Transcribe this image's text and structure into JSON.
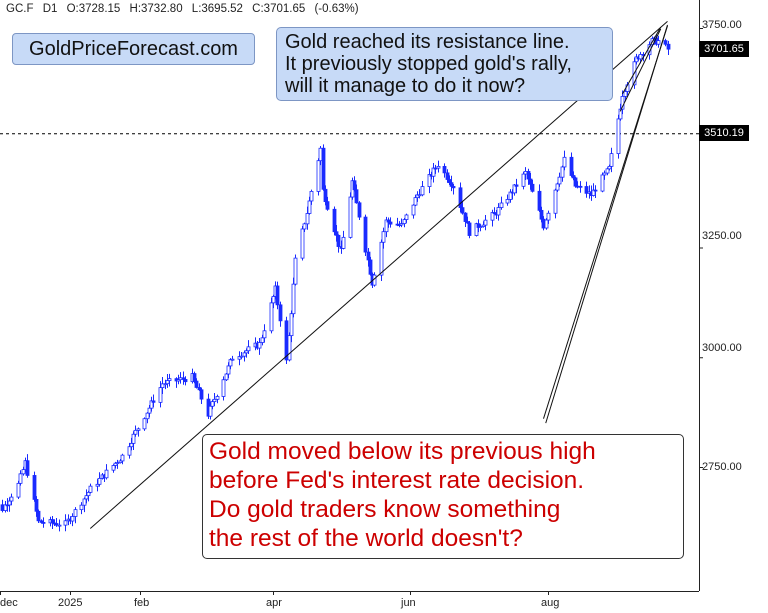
{
  "header": {
    "symbol": "GC.F",
    "interval": "D1",
    "open": "O:3728.15",
    "high": "H:3732.80",
    "low": "L:3695.52",
    "close": "C:3701.65",
    "change": "(-0.63%)"
  },
  "brand": "GoldPriceForecast.com",
  "annotations": {
    "top": [
      "Gold reached its resistance line.",
      "It previously stopped gold's rally,",
      "will it manage to do it now?"
    ],
    "bottom": [
      "Gold moved below its previous high",
      "before Fed's interest rate decision.",
      "Do gold traders know something",
      "the rest of the world doesn't?"
    ]
  },
  "price_tags": {
    "last": "3701.65",
    "previous_high": "3510.19"
  },
  "colors": {
    "candles": "#1a2bff",
    "callout_fill": "#c7daf7",
    "callout_text_bottom": "#cc0000",
    "background": "#ffffff"
  },
  "chart_data": {
    "type": "candlestick",
    "instrument": "GC.F",
    "timeframe": "D1",
    "x_tick_labels": [
      "dec",
      "2025",
      "feb",
      "apr",
      "jun",
      "aug"
    ],
    "y_tick_labels": [
      "3750.00",
      "3250.00",
      "3000.00",
      "2750.00"
    ],
    "ylim": [
      2570,
      3775
    ],
    "horizontal_levels": [
      3510.19
    ],
    "last_price": 3701.65,
    "trendlines": [
      {
        "from": [
          "2025-01-10",
          2610
        ],
        "to": [
          "2025-09-23",
          3765
        ]
      },
      {
        "from": [
          "2025-07-30",
          2860
        ],
        "to": [
          "2025-09-23",
          3755
        ]
      },
      {
        "from": [
          "2025-07-31",
          2850
        ],
        "to": [
          "2025-09-23",
          3757
        ]
      },
      {
        "from": [
          "2025-09-03",
          3600
        ],
        "to": [
          "2025-09-20",
          3752
        ]
      },
      {
        "from": [
          "2025-09-02",
          3560
        ],
        "to": [
          "2025-09-20",
          3748
        ]
      }
    ],
    "anchors": [
      [
        "2024-11-25",
        2670
      ],
      [
        "2024-12-02",
        2655
      ],
      [
        "2024-12-09",
        2710
      ],
      [
        "2024-12-12",
        2760
      ],
      [
        "2024-12-18",
        2625
      ],
      [
        "2024-12-30",
        2620
      ],
      [
        "2025-01-10",
        2700
      ],
      [
        "2025-01-24",
        2775
      ],
      [
        "2025-02-11",
        2940
      ],
      [
        "2025-02-24",
        2955
      ],
      [
        "2025-03-03",
        2870
      ],
      [
        "2025-03-14",
        3000
      ],
      [
        "2025-03-26",
        3030
      ],
      [
        "2025-04-02",
        3155
      ],
      [
        "2025-04-07",
        2990
      ],
      [
        "2025-04-11",
        3220
      ],
      [
        "2025-04-16",
        3330
      ],
      [
        "2025-04-22",
        3475
      ],
      [
        "2025-04-23",
        3380
      ],
      [
        "2025-05-01",
        3240
      ],
      [
        "2025-05-06",
        3400
      ],
      [
        "2025-05-15",
        3170
      ],
      [
        "2025-05-21",
        3310
      ],
      [
        "2025-05-28",
        3300
      ],
      [
        "2025-06-04",
        3370
      ],
      [
        "2025-06-13",
        3440
      ],
      [
        "2025-06-20",
        3390
      ],
      [
        "2025-06-27",
        3285
      ],
      [
        "2025-07-09",
        3330
      ],
      [
        "2025-07-22",
        3420
      ],
      [
        "2025-07-30",
        3300
      ],
      [
        "2025-08-08",
        3450
      ],
      [
        "2025-08-13",
        3390
      ],
      [
        "2025-08-20",
        3370
      ],
      [
        "2025-08-28",
        3430
      ],
      [
        "2025-09-03",
        3600
      ],
      [
        "2025-09-09",
        3680
      ],
      [
        "2025-09-16",
        3720
      ],
      [
        "2025-09-19",
        3720
      ],
      [
        "2025-09-23",
        3701.65
      ]
    ]
  }
}
